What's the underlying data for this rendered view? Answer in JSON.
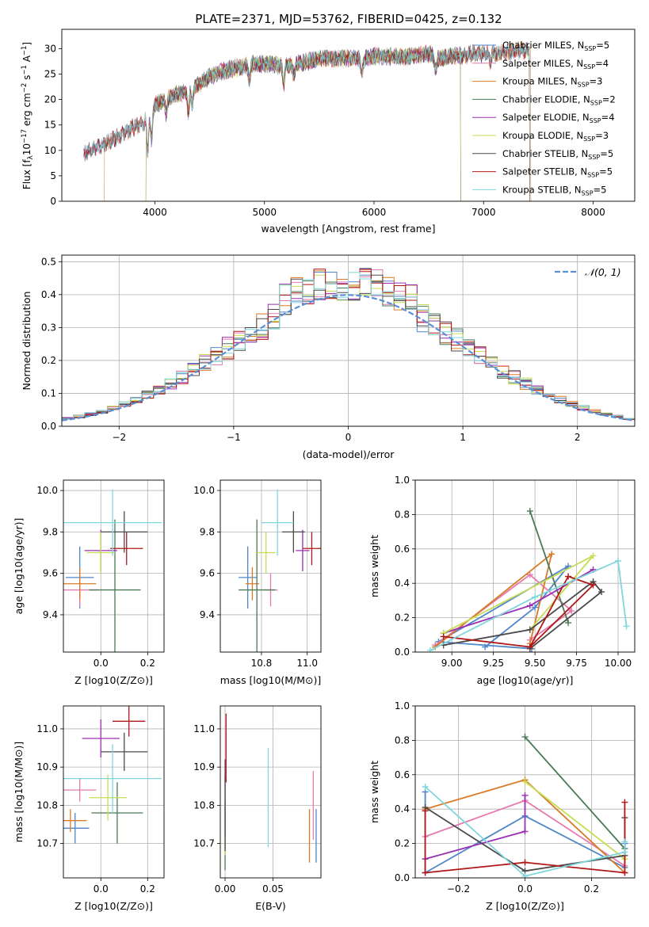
{
  "figure": {
    "title": "PLATE=2371, MJD=53762, FIBERID=0425, z=0.132"
  },
  "colors": {
    "Chabrier MILES": "#4f87c8",
    "Salpeter MILES": "#e67ab0",
    "Kroupa MILES": "#d97b25",
    "Chabrier ELODIE": "#4a7a55",
    "Salpeter ELODIE": "#9b2fb3",
    "Kroupa ELODIE": "#c7dc50",
    "Chabrier STELIB": "#4a4a4a",
    "Salpeter STELIB": "#b01818",
    "Kroupa STELIB": "#7fd6dc",
    "normal": "#5b8fd6"
  },
  "chart_data": [
    {
      "id": "spectrum",
      "type": "line",
      "xlabel": "wavelength [Angstrom, rest frame]",
      "ylabel_parts": [
        "Flux [f",
        "λ",
        "10",
        "−17",
        " erg cm",
        "−2",
        " s",
        "−1",
        " A",
        "−1",
        "]"
      ],
      "xlim": [
        3150,
        8380
      ],
      "ylim": [
        0,
        33.8
      ],
      "xticks": [
        4000,
        5000,
        6000,
        7000,
        8000
      ],
      "yticks": [
        0,
        5,
        10,
        15,
        20,
        25,
        30
      ],
      "continuum": [
        [
          3350,
          9.5
        ],
        [
          3500,
          10.8
        ],
        [
          3650,
          12.5
        ],
        [
          3800,
          14.5
        ],
        [
          3900,
          15.5
        ],
        [
          4000,
          19
        ],
        [
          4100,
          20.2
        ],
        [
          4200,
          21
        ],
        [
          4300,
          21.5
        ],
        [
          4400,
          23
        ],
        [
          4500,
          24.5
        ],
        [
          4600,
          25.5
        ],
        [
          4700,
          26
        ],
        [
          4800,
          26.5
        ],
        [
          4900,
          27
        ],
        [
          5000,
          27
        ],
        [
          5100,
          26.8
        ],
        [
          5200,
          26.5
        ],
        [
          5300,
          27
        ],
        [
          5400,
          27.5
        ],
        [
          5500,
          28
        ],
        [
          5600,
          28
        ],
        [
          5700,
          28
        ],
        [
          5800,
          28.2
        ],
        [
          5900,
          28
        ],
        [
          6000,
          28.5
        ],
        [
          6100,
          28.5
        ],
        [
          6200,
          28.5
        ],
        [
          6300,
          28.3
        ],
        [
          6400,
          28.8
        ],
        [
          6500,
          29
        ],
        [
          6600,
          28
        ],
        [
          6700,
          28.6
        ],
        [
          6800,
          28.6
        ],
        [
          6900,
          29
        ],
        [
          7000,
          29
        ],
        [
          7100,
          29
        ],
        [
          7200,
          29.3
        ],
        [
          7300,
          29.6
        ],
        [
          7400,
          29.6
        ]
      ],
      "series": [
        {
          "name": "Chabrier MILES, N",
          "sub": "SSP",
          "post": "=5",
          "key": "Chabrier MILES",
          "xmin": 3350,
          "xmax": 7420
        },
        {
          "name": "Salpeter MILES, N",
          "sub": "SSP",
          "post": "=4",
          "key": "Salpeter MILES",
          "xmin": 3350,
          "xmax": 7420
        },
        {
          "name": "Kroupa MILES, N",
          "sub": "SSP",
          "post": "=3",
          "key": "Kroupa MILES",
          "xmin": 3540,
          "xmax": 7430
        },
        {
          "name": "Chabrier ELODIE, N",
          "sub": "SSP",
          "post": "=2",
          "key": "Chabrier ELODIE",
          "xmin": 3920,
          "xmax": 6790
        },
        {
          "name": "Salpeter ELODIE, N",
          "sub": "SSP",
          "post": "=4",
          "key": "Salpeter ELODIE",
          "xmin": 3920,
          "xmax": 6790
        },
        {
          "name": "Kroupa ELODIE, N",
          "sub": "SSP",
          "post": "=3",
          "key": "Kroupa ELODIE",
          "xmin": 3920,
          "xmax": 6790
        },
        {
          "name": "Chabrier STELIB, N",
          "sub": "SSP",
          "post": "=5",
          "key": "Chabrier STELIB",
          "xmin": 3350,
          "xmax": 7420
        },
        {
          "name": "Salpeter STELIB, N",
          "sub": "SSP",
          "post": "=5",
          "key": "Salpeter STELIB",
          "xmin": 3350,
          "xmax": 7420
        },
        {
          "name": "Kroupa STELIB, N",
          "sub": "SSP",
          "post": "=5",
          "key": "Kroupa STELIB",
          "xmin": 3350,
          "xmax": 7420
        }
      ],
      "legend": "upper right"
    },
    {
      "id": "residuals",
      "type": "histogram",
      "xlabel": "(data-model)/error",
      "ylabel": "Normed distribution",
      "xlim": [
        -2.5,
        2.5
      ],
      "ylim": [
        0,
        0.52
      ],
      "xticks": [
        -2,
        -1,
        0,
        1,
        2
      ],
      "yticks": [
        0.0,
        0.1,
        0.2,
        0.3,
        0.4,
        0.5
      ],
      "bin_width": 0.1,
      "grid": true,
      "normal_label": "𝒩(0, 1)",
      "legend": "upper right"
    },
    {
      "id": "age_vs_Z",
      "type": "errorbar",
      "xlabel": "Z [log10(Z/Z⊙)]",
      "ylabel": "age  [log10(age/yr)]",
      "xlim": [
        -0.16,
        0.27
      ],
      "ylim": [
        9.22,
        10.05
      ],
      "xticks": [
        0.0,
        0.2
      ],
      "yticks": [
        9.4,
        9.6,
        9.8,
        10.0
      ],
      "grid": true,
      "points": [
        {
          "key": "Chabrier MILES",
          "x": -0.09,
          "xerr": 0.06,
          "y": 9.58,
          "yerr": 0.15
        },
        {
          "key": "Salpeter MILES",
          "x": -0.09,
          "xerr": 0.08,
          "y": 9.52,
          "yerr": 0.08
        },
        {
          "key": "Kroupa MILES",
          "x": -0.09,
          "xerr": 0.07,
          "y": 9.55,
          "yerr": 0.08
        },
        {
          "key": "Chabrier ELODIE",
          "x": 0.06,
          "xerr": 0.11,
          "y": 9.52,
          "yerr": 0.34
        },
        {
          "key": "Salpeter ELODIE",
          "x": 0.0,
          "xerr": 0.07,
          "y": 9.71,
          "yerr": 0.1
        },
        {
          "key": "Kroupa ELODIE",
          "x": 0.0,
          "xerr": 0.06,
          "y": 9.7,
          "yerr": 0.1
        },
        {
          "key": "Chabrier STELIB",
          "x": 0.1,
          "xerr": 0.1,
          "y": 9.8,
          "yerr": 0.1
        },
        {
          "key": "Salpeter STELIB",
          "x": 0.11,
          "xerr": 0.07,
          "y": 9.72,
          "yerr": 0.08
        },
        {
          "key": "Kroupa STELIB",
          "x": 0.05,
          "xerr": 0.21,
          "y": 9.845,
          "yerr": 0.16
        }
      ]
    },
    {
      "id": "age_vs_mass",
      "type": "errorbar",
      "xlabel": "mass [log10(M/M⊙)]",
      "ylabel": "",
      "xlim": [
        10.62,
        11.06
      ],
      "ylim": [
        9.22,
        10.05
      ],
      "xticks": [
        10.8,
        11.0
      ],
      "yticks": [
        9.4,
        9.6,
        9.8,
        10.0
      ],
      "grid": true,
      "points": [
        {
          "key": "Chabrier MILES",
          "x": 10.74,
          "xerr": 0.04,
          "y": 9.58,
          "yerr": 0.15
        },
        {
          "key": "Salpeter MILES",
          "x": 10.84,
          "xerr": 0.03,
          "y": 9.52,
          "yerr": 0.08
        },
        {
          "key": "Kroupa MILES",
          "x": 10.76,
          "xerr": 0.03,
          "y": 9.55,
          "yerr": 0.08
        },
        {
          "key": "Chabrier ELODIE",
          "x": 10.78,
          "xerr": 0.08,
          "y": 9.52,
          "yerr": 0.34
        },
        {
          "key": "Salpeter ELODIE",
          "x": 10.98,
          "xerr": 0.03,
          "y": 9.71,
          "yerr": 0.1
        },
        {
          "key": "Kroupa ELODIE",
          "x": 10.82,
          "xerr": 0.04,
          "y": 9.7,
          "yerr": 0.1
        },
        {
          "key": "Chabrier STELIB",
          "x": 10.94,
          "xerr": 0.05,
          "y": 9.8,
          "yerr": 0.1
        },
        {
          "key": "Salpeter STELIB",
          "x": 11.02,
          "xerr": 0.04,
          "y": 9.72,
          "yerr": 0.08
        },
        {
          "key": "Kroupa STELIB",
          "x": 10.87,
          "xerr": 0.07,
          "y": 9.845,
          "yerr": 0.16
        }
      ]
    },
    {
      "id": "weight_vs_age",
      "type": "line",
      "xlabel": "age  [log10(age/yr)]",
      "ylabel": "mass weight",
      "xlim": [
        8.78,
        10.1
      ],
      "ylim": [
        0,
        1.0
      ],
      "xticks": [
        9.0,
        9.25,
        9.5,
        9.75,
        10.0
      ],
      "yticks": [
        0.0,
        0.2,
        0.4,
        0.6,
        0.8,
        1.0
      ],
      "grid": true,
      "series": [
        {
          "key": "Chabrier MILES",
          "points": [
            [
              9.2,
              0.03
            ],
            [
              9.5,
              0.26
            ],
            [
              9.7,
              0.5
            ],
            [
              8.92,
              0.06
            ],
            [
              9.48,
              0.02
            ]
          ]
        },
        {
          "key": "Salpeter MILES",
          "points": [
            [
              8.9,
              0.04
            ],
            [
              9.47,
              0.45
            ],
            [
              9.72,
              0.24
            ],
            [
              9.47,
              0.07
            ]
          ]
        },
        {
          "key": "Kroupa MILES",
          "points": [
            [
              8.9,
              0.03
            ],
            [
              9.6,
              0.57
            ],
            [
              9.47,
              0.05
            ]
          ]
        },
        {
          "key": "Chabrier ELODIE",
          "points": [
            [
              9.47,
              0.82
            ],
            [
              9.7,
              0.17
            ]
          ]
        },
        {
          "key": "Salpeter ELODIE",
          "points": [
            [
              8.95,
              0.11
            ],
            [
              9.47,
              0.27
            ],
            [
              9.85,
              0.48
            ]
          ]
        },
        {
          "key": "Kroupa ELODIE",
          "points": [
            [
              8.95,
              0.11
            ],
            [
              9.85,
              0.56
            ],
            [
              9.47,
              0.13
            ]
          ]
        },
        {
          "key": "Chabrier STELIB",
          "points": [
            [
              8.95,
              0.04
            ],
            [
              9.47,
              0.13
            ],
            [
              9.85,
              0.41
            ],
            [
              9.9,
              0.35
            ],
            [
              9.47,
              0.02
            ]
          ]
        },
        {
          "key": "Salpeter STELIB",
          "points": [
            [
              8.95,
              0.09
            ],
            [
              9.47,
              0.03
            ],
            [
              9.7,
              0.44
            ],
            [
              9.85,
              0.39
            ],
            [
              9.47,
              0.03
            ]
          ]
        },
        {
          "key": "Kroupa STELIB",
          "points": [
            [
              8.87,
              0.01
            ],
            [
              9.5,
              0.32
            ],
            [
              10.0,
              0.53
            ],
            [
              10.05,
              0.15
            ]
          ]
        }
      ]
    },
    {
      "id": "mass_vs_Z",
      "type": "errorbar",
      "xlabel": "Z [log10(Z/Z⊙)]",
      "ylabel": "mass [log10(M/M⊙)]",
      "xlim": [
        -0.16,
        0.27
      ],
      "ylim": [
        10.61,
        11.06
      ],
      "xticks": [
        0.0,
        0.2
      ],
      "yticks": [
        10.7,
        10.8,
        10.9,
        11.0
      ],
      "grid": true,
      "points": [
        {
          "key": "Chabrier MILES",
          "x": -0.11,
          "xerr": 0.06,
          "y": 10.74,
          "yerr": 0.04
        },
        {
          "key": "Salpeter MILES",
          "x": -0.09,
          "xerr": 0.07,
          "y": 10.84,
          "yerr": 0.03
        },
        {
          "key": "Kroupa MILES",
          "x": -0.13,
          "xerr": 0.07,
          "y": 10.76,
          "yerr": 0.03
        },
        {
          "key": "Chabrier ELODIE",
          "x": 0.07,
          "xerr": 0.11,
          "y": 10.78,
          "yerr": 0.08
        },
        {
          "key": "Salpeter ELODIE",
          "x": 0.0,
          "xerr": 0.08,
          "y": 10.975,
          "yerr": 0.05
        },
        {
          "key": "Kroupa ELODIE",
          "x": 0.03,
          "xerr": 0.08,
          "y": 10.82,
          "yerr": 0.06
        },
        {
          "key": "Chabrier STELIB",
          "x": 0.1,
          "xerr": 0.1,
          "y": 10.94,
          "yerr": 0.05
        },
        {
          "key": "Salpeter STELIB",
          "x": 0.12,
          "xerr": 0.07,
          "y": 11.02,
          "yerr": 0.04
        },
        {
          "key": "Kroupa STELIB",
          "x": 0.05,
          "xerr": 0.21,
          "y": 10.87,
          "yerr": 0.09
        }
      ]
    },
    {
      "id": "mass_vs_ebv",
      "type": "errorbar",
      "xlabel": "E(B-V)",
      "ylabel": "",
      "xlim": [
        -0.005,
        0.1
      ],
      "ylim": [
        10.61,
        11.06
      ],
      "xticks": [
        0.0,
        0.05
      ],
      "xtick_labels": [
        "0.00",
        "0.05"
      ],
      "yticks": [
        10.7,
        10.8,
        10.9,
        11.0
      ],
      "grid": true,
      "points": [
        {
          "key": "Chabrier MILES",
          "x": 0.095,
          "xerr": 0,
          "y": 10.72,
          "yerr": 0.07
        },
        {
          "key": "Salpeter MILES",
          "x": 0.092,
          "xerr": 0,
          "y": 10.8,
          "yerr": 0.09
        },
        {
          "key": "Kroupa MILES",
          "x": 0.088,
          "xerr": 0,
          "y": 10.72,
          "yerr": 0.07
        },
        {
          "key": "Chabrier ELODIE",
          "x": 0.0,
          "xerr": 0,
          "y": 10.72,
          "yerr": 0.09
        },
        {
          "key": "Salpeter ELODIE",
          "x": 0.0,
          "xerr": 0,
          "y": 10.8,
          "yerr": 0.08
        },
        {
          "key": "Kroupa ELODIE",
          "x": 0.0,
          "xerr": 0,
          "y": 10.74,
          "yerr": 0.07
        },
        {
          "key": "Chabrier STELIB",
          "x": 0.0,
          "xerr": 0,
          "y": 10.8,
          "yerr": 0.12
        },
        {
          "key": "Salpeter STELIB",
          "x": 0.001,
          "xerr": 0,
          "y": 10.95,
          "yerr": 0.09
        },
        {
          "key": "Kroupa STELIB",
          "x": 0.045,
          "xerr": 0,
          "y": 10.82,
          "yerr": 0.13
        }
      ]
    },
    {
      "id": "weight_vs_Z",
      "type": "line",
      "xlabel": "Z [log10(Z/Z⊙)]",
      "ylabel": "mass weight",
      "xlim": [
        -0.33,
        0.33
      ],
      "ylim": [
        0,
        1.0
      ],
      "xticks": [
        -0.2,
        0.0,
        0.2
      ],
      "yticks": [
        0.0,
        0.2,
        0.4,
        0.6,
        0.8,
        1.0
      ],
      "grid": true,
      "series": [
        {
          "key": "Chabrier MILES",
          "points": [
            [
              -0.3,
              0.5
            ],
            [
              -0.3,
              0.03
            ],
            [
              0.0,
              0.36
            ],
            [
              0.3,
              0.06
            ],
            [
              0.3,
              0.2
            ]
          ]
        },
        {
          "key": "Salpeter MILES",
          "points": [
            [
              -0.3,
              0.24
            ],
            [
              0.0,
              0.45
            ],
            [
              0.3,
              0.07
            ]
          ]
        },
        {
          "key": "Kroupa MILES",
          "points": [
            [
              -0.3,
              0.4
            ],
            [
              0.0,
              0.57
            ],
            [
              0.3,
              0.03
            ]
          ]
        },
        {
          "key": "Chabrier ELODIE",
          "points": [
            [
              0.0,
              0.82
            ],
            [
              0.3,
              0.17
            ]
          ]
        },
        {
          "key": "Salpeter ELODIE",
          "points": [
            [
              -0.3,
              0.11
            ],
            [
              0.0,
              0.27
            ],
            [
              0.0,
              0.48
            ]
          ]
        },
        {
          "key": "Kroupa ELODIE",
          "points": [
            [
              0.0,
              0.56
            ],
            [
              0.3,
              0.11
            ]
          ]
        },
        {
          "key": "Chabrier STELIB",
          "points": [
            [
              -0.3,
              0.41
            ],
            [
              0.0,
              0.04
            ],
            [
              0.3,
              0.13
            ],
            [
              0.3,
              0.35
            ]
          ]
        },
        {
          "key": "Salpeter STELIB",
          "points": [
            [
              -0.3,
              0.39
            ],
            [
              -0.3,
              0.03
            ],
            [
              0.0,
              0.09
            ],
            [
              0.3,
              0.03
            ],
            [
              0.3,
              0.44
            ]
          ]
        },
        {
          "key": "Kroupa STELIB",
          "points": [
            [
              -0.3,
              0.53
            ],
            [
              0.0,
              0.01
            ],
            [
              0.3,
              0.15
            ],
            [
              0.3,
              0.21
            ]
          ]
        }
      ]
    }
  ]
}
